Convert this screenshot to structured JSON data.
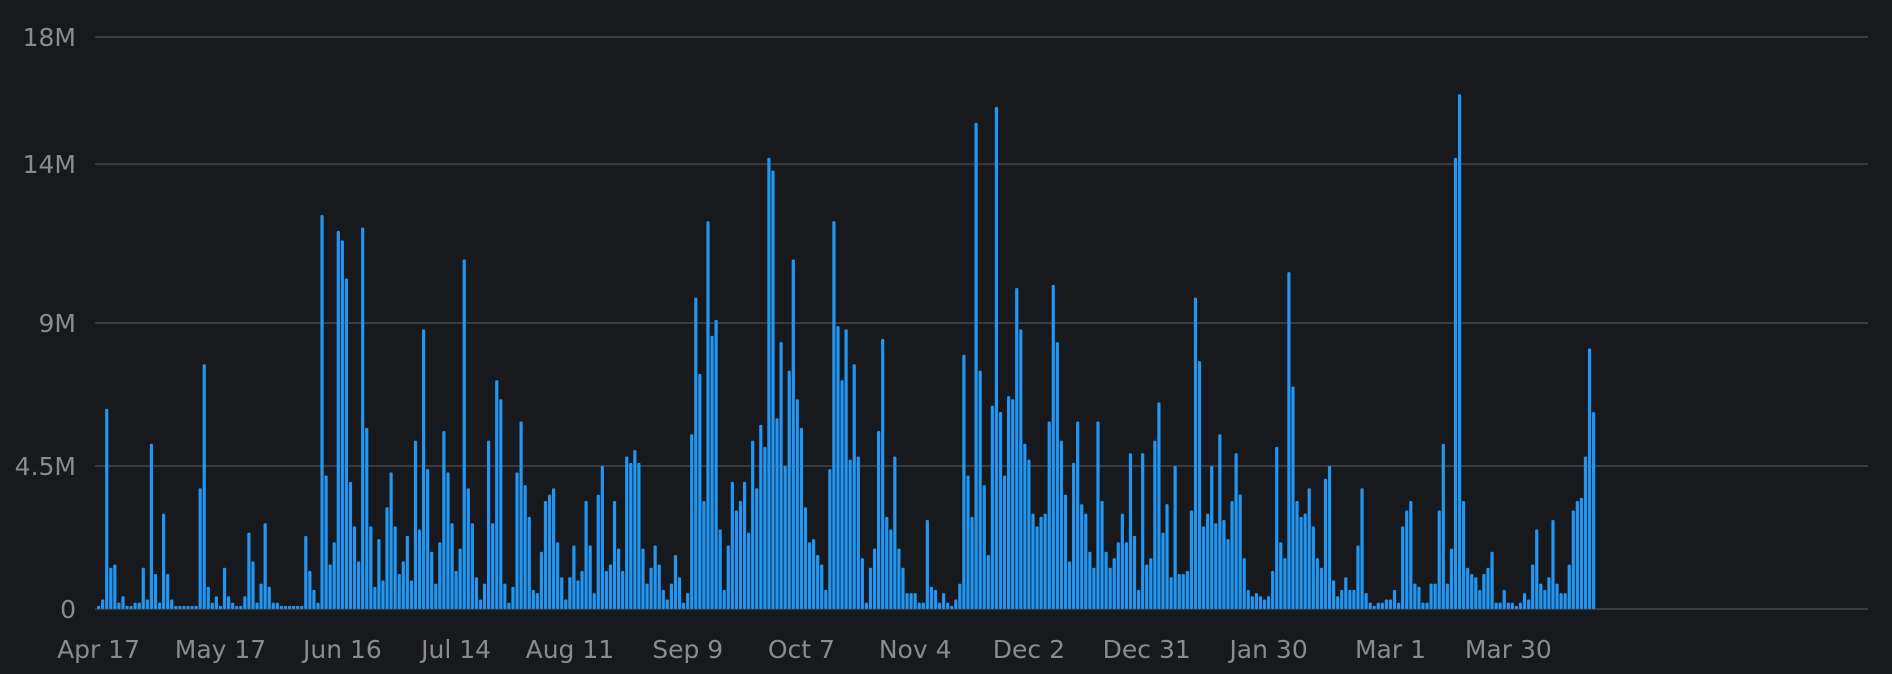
{
  "chart_data": {
    "type": "bar",
    "title": "",
    "xlabel": "",
    "ylabel": "",
    "ylim": [
      0,
      18000000
    ],
    "yticks": [
      {
        "value": 0,
        "label": "0"
      },
      {
        "value": 4500000,
        "label": "4.5M"
      },
      {
        "value": 9000000,
        "label": "9M"
      },
      {
        "value": 14000000,
        "label": "14M"
      },
      {
        "value": 18000000,
        "label": "18M"
      }
    ],
    "x_start": "2023-04-17",
    "xtick_labels": [
      "Apr 17",
      "May 17",
      "Jun 16",
      "Jul 14",
      "Aug 11",
      "Sep 9",
      "Oct 7",
      "Nov 4",
      "Dec 2",
      "Dec 31",
      "Jan 30",
      "Mar 1",
      "Mar 30"
    ],
    "xtick_days": [
      0,
      30,
      60,
      88,
      116,
      145,
      173,
      201,
      229,
      258,
      288,
      318,
      347
    ],
    "grid": true,
    "bar_color": "#2196f3",
    "values": [
      0.1,
      0.3,
      6.3,
      1.3,
      1.4,
      0.2,
      0.4,
      0.1,
      0.1,
      0.2,
      0.2,
      1.3,
      0.3,
      5.2,
      1.1,
      0.2,
      3.0,
      1.1,
      0.3,
      0.1,
      0.1,
      0.1,
      0.1,
      0.1,
      0.1,
      3.8,
      7.7,
      0.7,
      0.2,
      0.4,
      0.1,
      1.3,
      0.4,
      0.2,
      0.1,
      0.1,
      0.4,
      2.4,
      1.5,
      0.2,
      0.8,
      2.7,
      0.7,
      0.2,
      0.2,
      0.1,
      0.1,
      0.1,
      0.1,
      0.1,
      0.1,
      2.3,
      1.2,
      0.6,
      0.2,
      12.4,
      4.2,
      1.4,
      2.1,
      11.9,
      11.6,
      10.4,
      4.0,
      2.6,
      1.5,
      12.0,
      5.7,
      2.6,
      0.7,
      2.2,
      0.9,
      3.2,
      4.3,
      2.6,
      1.1,
      1.5,
      2.3,
      0.9,
      5.3,
      2.5,
      8.8,
      4.4,
      1.8,
      0.8,
      2.1,
      5.6,
      4.3,
      2.7,
      1.2,
      1.9,
      11.0,
      3.8,
      2.7,
      1.0,
      0.3,
      0.8,
      5.3,
      2.7,
      7.2,
      6.6,
      0.8,
      0.2,
      0.7,
      4.3,
      5.9,
      3.9,
      2.9,
      0.6,
      0.5,
      1.8,
      3.4,
      3.6,
      3.8,
      2.1,
      1.0,
      0.3,
      1.0,
      2.0,
      0.9,
      1.2,
      3.4,
      2.0,
      0.5,
      3.6,
      4.5,
      1.2,
      1.4,
      3.4,
      1.9,
      1.2,
      4.8,
      4.6,
      5.0,
      4.6,
      1.9,
      0.8,
      1.3,
      2.0,
      1.4,
      0.6,
      0.3,
      0.8,
      1.7,
      1.0,
      0.2,
      0.5,
      5.5,
      9.8,
      7.4,
      3.4,
      12.2,
      8.6,
      9.1,
      2.5,
      0.6,
      2.0,
      4.0,
      3.1,
      3.4,
      4.0,
      2.4,
      5.3,
      3.8,
      5.8,
      5.1,
      14.2,
      13.8,
      6.0,
      8.4,
      4.5,
      7.5,
      11.0,
      6.6,
      5.7,
      3.2,
      2.1,
      2.2,
      1.7,
      1.4,
      0.6,
      4.4,
      12.2,
      8.9,
      7.2,
      8.8,
      4.7,
      7.7,
      4.8,
      1.6,
      0.2,
      1.3,
      1.9,
      5.6,
      8.5,
      2.9,
      2.5,
      4.8,
      1.9,
      1.3,
      0.5,
      0.5,
      0.5,
      0.2,
      0.2,
      2.8,
      0.7,
      0.6,
      0.2,
      0.5,
      0.2,
      0.1,
      0.3,
      0.8,
      8.0,
      4.2,
      2.9,
      15.3,
      7.5,
      3.9,
      1.7,
      6.4,
      15.8,
      6.2,
      4.2,
      6.7,
      6.6,
      10.1,
      8.8,
      5.2,
      4.7,
      3.0,
      2.6,
      2.9,
      3.0,
      5.9,
      10.2,
      8.4,
      5.3,
      3.6,
      1.5,
      4.6,
      5.9,
      3.3,
      3.0,
      1.8,
      1.3,
      5.9,
      3.4,
      1.8,
      1.3,
      1.6,
      2.1,
      3.0,
      2.1,
      4.9,
      2.3,
      0.6,
      4.9,
      1.4,
      1.6,
      5.3,
      6.5,
      2.4,
      3.3,
      1.0,
      4.5,
      1.1,
      1.1,
      1.2,
      3.1,
      9.8,
      7.8,
      2.6,
      3.0,
      4.5,
      2.7,
      5.5,
      2.8,
      2.2,
      3.4,
      4.9,
      3.6,
      1.6,
      0.6,
      0.4,
      0.5,
      0.4,
      0.3,
      0.4,
      1.2,
      5.1,
      2.1,
      1.6,
      10.6,
      7.0,
      3.4,
      2.9,
      3.0,
      3.8,
      2.6,
      1.6,
      1.3,
      4.1,
      4.5,
      0.9,
      0.4,
      0.6,
      1.0,
      0.6,
      0.6,
      2.0,
      3.8,
      0.5,
      0.2,
      0.1,
      0.2,
      0.2,
      0.3,
      0.3,
      0.6,
      0.2,
      2.6,
      3.1,
      3.4,
      0.8,
      0.7,
      0.2,
      0.2,
      0.8,
      0.8,
      3.1,
      5.2,
      0.8,
      1.9,
      14.2,
      16.2,
      3.4,
      1.3,
      1.1,
      1.0,
      0.6,
      1.1,
      1.3,
      1.8,
      0.2,
      0.2,
      0.6,
      0.2,
      0.2,
      0.1,
      0.2,
      0.5,
      0.3,
      1.4,
      2.5,
      0.8,
      0.6,
      1.0,
      2.8,
      0.8,
      0.5,
      0.5,
      1.4,
      3.1,
      3.4,
      3.5,
      4.8,
      8.2,
      6.2
    ],
    "value_unit": "M"
  }
}
